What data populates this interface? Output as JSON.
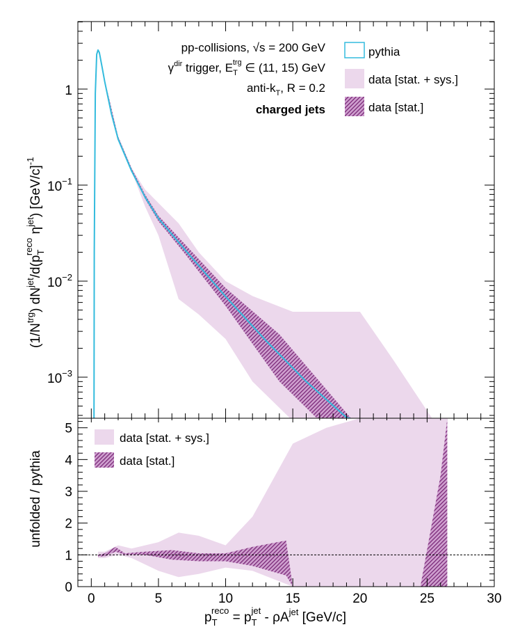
{
  "colors": {
    "pythia": "#33bbdd",
    "band_sys": "#ecd8ec",
    "band_stat": "#8a2f88",
    "frame": "#000000"
  },
  "chart_data": [
    {
      "type": "line",
      "panel": "upper",
      "scale_y": "log",
      "xlim": [
        -1,
        30
      ],
      "ylim": [
        0.00035,
        4
      ],
      "ylabel_parts": {
        "pre": "(1/N",
        "sup1": "trg",
        "mid": ") dN",
        "sup2": "jet",
        "mid2": "/d(p",
        "sub1": "T",
        "sup3": "reco",
        "mid3": " η",
        "sup4": "jet",
        "post": ") [GeV/c]",
        "sup5": "-1"
      },
      "y_ticks": [
        {
          "value": 1,
          "label": "1"
        },
        {
          "value": 0.1,
          "label": "10",
          "exp": "−1"
        },
        {
          "value": 0.01,
          "label": "10",
          "exp": "−2"
        },
        {
          "value": 0.001,
          "label": "10",
          "exp": "−3"
        }
      ],
      "annotations": {
        "line1": {
          "pre": "pp-collisions, ",
          "sqrt": "√s",
          "post": " = 200 GeV"
        },
        "line2": {
          "gamma": "γ",
          "sup_dir": "dir",
          "mid": " trigger, E",
          "sub_T": "T",
          "sup_trg": "trg",
          "post": " ∈ (11, 15) GeV"
        },
        "line3": {
          "pre": "anti-k",
          "sub_T": "T",
          "post": ", R = 0.2"
        },
        "line4": "charged jets"
      },
      "legend": {
        "placement": "top-right",
        "entries": [
          "pythia",
          "data [stat. + sys.]",
          "data [stat.]"
        ]
      },
      "series": [
        {
          "name": "pythia",
          "x": [
            0.2,
            0.22,
            0.3,
            0.4,
            0.5,
            0.6,
            0.8,
            1.0,
            1.5,
            2.0,
            3.0,
            4.0,
            5.0,
            7.0,
            10.0,
            13.0,
            16.0,
            19.0,
            20.0
          ],
          "y": [
            0.00035,
            0.02,
            0.9,
            2.3,
            2.55,
            2.4,
            1.7,
            1.2,
            0.55,
            0.3,
            0.14,
            0.075,
            0.045,
            0.021,
            0.0069,
            0.0024,
            0.0009,
            0.00038,
            0.00035
          ]
        },
        {
          "name": "data [stat. + sys.]",
          "x": [
            2.0,
            3.0,
            4.0,
            5.0,
            6.5,
            8.0,
            10.0,
            12.0,
            15.0,
            17.5,
            20.0,
            22.5,
            25.5
          ],
          "y_low": [
            0.3,
            0.14,
            0.06,
            0.03,
            0.0065,
            0.0045,
            0.0025,
            0.0009,
            0.00035,
            0.00035,
            0.00035,
            0.00035,
            0.00035
          ],
          "y_high": [
            0.32,
            0.15,
            0.09,
            0.065,
            0.04,
            0.02,
            0.01,
            0.007,
            0.0048,
            0.0048,
            0.0048,
            0.0015,
            0.00035
          ]
        },
        {
          "name": "data [stat.]",
          "x": [
            1.0,
            2.0,
            3.0,
            4.0,
            5.0,
            7.0,
            10.0,
            14.0,
            17.0,
            19.5
          ],
          "y_low": [
            1.2,
            0.3,
            0.14,
            0.072,
            0.042,
            0.019,
            0.0055,
            0.0009,
            0.00035,
            0.00035
          ],
          "y_high": [
            1.25,
            0.32,
            0.15,
            0.08,
            0.048,
            0.024,
            0.0085,
            0.0028,
            0.0009,
            0.00035
          ]
        }
      ]
    },
    {
      "type": "area",
      "panel": "lower",
      "xlim": [
        -1,
        30
      ],
      "ylim": [
        0,
        5.3
      ],
      "xlabel_parts": {
        "p": "p",
        "sub": "T",
        "sup": "reco",
        "eq": " = p",
        "sub2": "T",
        "sup2": "jet",
        "mid": " - ρA",
        "sup3": "jet",
        "post": " [GeV/c]"
      },
      "ylabel": "unfolded / pythia",
      "x_ticks": [
        0,
        5,
        10,
        15,
        20,
        25,
        30
      ],
      "y_ticks": [
        0,
        1,
        2,
        3,
        4,
        5
      ],
      "reference_line": 1,
      "legend": {
        "placement": "top-left",
        "entries": [
          "data [stat. + sys.]",
          "data [stat.]"
        ]
      },
      "series": [
        {
          "name": "data [stat. + sys.]",
          "x": [
            0.5,
            1.0,
            2.0,
            3.0,
            5.0,
            6.5,
            8.0,
            10.0,
            12.0,
            15.0,
            17.5,
            20.0,
            22.0,
            26.5
          ],
          "y_low": [
            0.9,
            0.9,
            1.0,
            0.9,
            0.5,
            0.3,
            0.4,
            0.6,
            0.5,
            0.0,
            0.0,
            0.0,
            0.0,
            0.0
          ],
          "y_high": [
            1.1,
            1.1,
            1.3,
            1.2,
            1.4,
            1.7,
            1.6,
            1.3,
            2.2,
            4.5,
            5.0,
            5.3,
            5.3,
            5.3
          ]
        },
        {
          "name": "data [stat.]",
          "x": [
            0.5,
            1.0,
            1.8,
            2.5,
            4.0,
            6.0,
            8.0,
            10.0,
            12.0,
            14.5,
            15.0
          ],
          "y_low": [
            0.95,
            0.95,
            1.1,
            1.0,
            1.0,
            0.85,
            0.8,
            0.8,
            0.65,
            0.35,
            0.0
          ],
          "y_high": [
            1.0,
            1.05,
            1.25,
            1.05,
            1.1,
            1.15,
            1.05,
            1.05,
            1.25,
            1.45,
            0.0
          ]
        },
        {
          "name": "data [stat.]",
          "x": [
            24.5,
            26.0,
            26.5
          ],
          "y_low": [
            0.0,
            0.0,
            0.0
          ],
          "y_high": [
            0.0,
            3.5,
            5.3
          ]
        }
      ]
    }
  ]
}
